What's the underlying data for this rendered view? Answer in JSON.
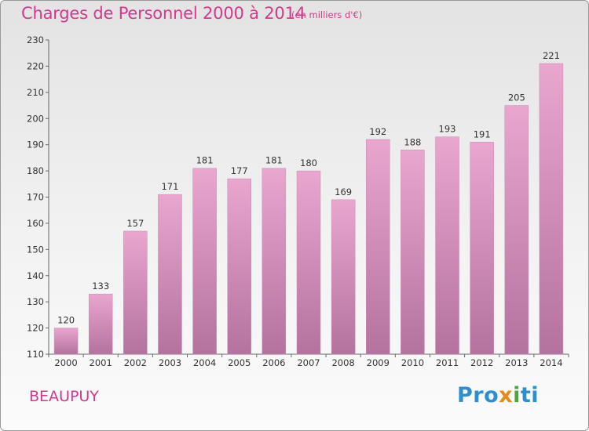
{
  "title": "Charges de Personnel 2000 à 2014",
  "unit_note": "(en milliers d'€)",
  "place_name": "BEAUPUY",
  "logo": {
    "text": "Proxiti",
    "part1": "Pro",
    "part2": "x",
    "part3": "i",
    "part4": "ti"
  },
  "colors": {
    "accent": "#d4388d",
    "bar_top": "#e9a6cf",
    "bar_bottom": "#b4729f"
  },
  "chart_data": {
    "type": "bar",
    "title": "Charges de Personnel 2000 à 2014",
    "subtitle": "(en milliers d'€)",
    "categories": [
      "2000",
      "2001",
      "2002",
      "2003",
      "2004",
      "2005",
      "2006",
      "2007",
      "2008",
      "2009",
      "2010",
      "2011",
      "2012",
      "2013",
      "2014"
    ],
    "values": [
      120,
      133,
      157,
      171,
      181,
      177,
      181,
      180,
      169,
      192,
      188,
      193,
      191,
      205,
      221
    ],
    "ylim": [
      110,
      230
    ],
    "yticks": [
      110,
      120,
      130,
      140,
      150,
      160,
      170,
      180,
      190,
      200,
      210,
      220,
      230
    ],
    "grid": false,
    "data_labels": true
  }
}
